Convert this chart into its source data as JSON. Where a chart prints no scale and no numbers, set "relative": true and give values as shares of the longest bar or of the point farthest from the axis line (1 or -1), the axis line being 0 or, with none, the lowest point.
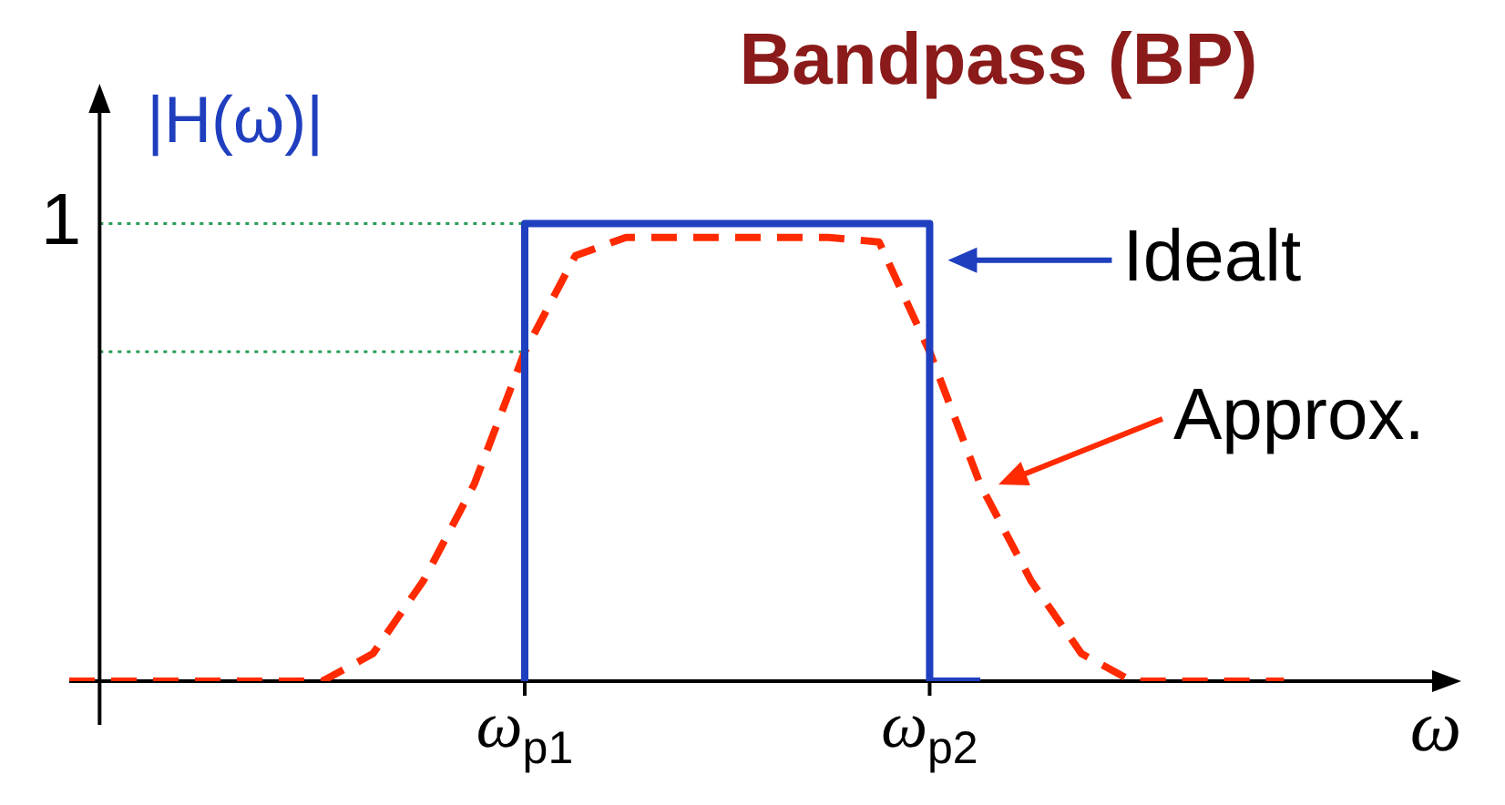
{
  "chart_data": {
    "type": "line",
    "title": "Bandpass (BP)",
    "xlabel": "ω",
    "ylabel": "|H(ω)|",
    "relative": true,
    "categories": [
      null,
      null,
      null,
      null,
      null,
      null,
      null,
      null,
      null,
      "ω$_{p1}$",
      null,
      null,
      null,
      null,
      null,
      null,
      null,
      "ω$_{p2}$",
      null,
      null,
      null,
      null,
      null,
      null,
      null,
      null,
      null,
      null
    ],
    "series": [
      {
        "name": "Idealt",
        "type": "step",
        "color": "#1f3fbf",
        "line_style": "solid",
        "values": [
          null,
          null,
          null,
          null,
          null,
          null,
          null,
          null,
          null,
          0,
          1,
          1,
          1,
          1,
          1,
          1,
          1,
          1,
          0,
          null,
          null,
          null,
          null,
          null,
          null,
          null,
          null,
          null
        ]
      },
      {
        "name": "Approx.",
        "type": "line",
        "color": "#ff2a00",
        "line_style": "dashed",
        "values": [
          0,
          0,
          0,
          0,
          0,
          0,
          0.06,
          0.22,
          0.43,
          0.72,
          0.93,
          0.97,
          0.97,
          0.97,
          0.97,
          0.97,
          0.96,
          0.72,
          0.43,
          0.22,
          0.06,
          0,
          0,
          0,
          0,
          null,
          null,
          null
        ]
      }
    ],
    "ref_lines": [
      {
        "axis": "y",
        "value": 1,
        "label": "1",
        "color": "#2a9d5a",
        "line_style": "dotted"
      },
      {
        "axis": "y",
        "value": 0.72,
        "color": "#2a9d5a",
        "line_style": "dotted"
      }
    ],
    "legend": "right",
    "marker": "none"
  }
}
